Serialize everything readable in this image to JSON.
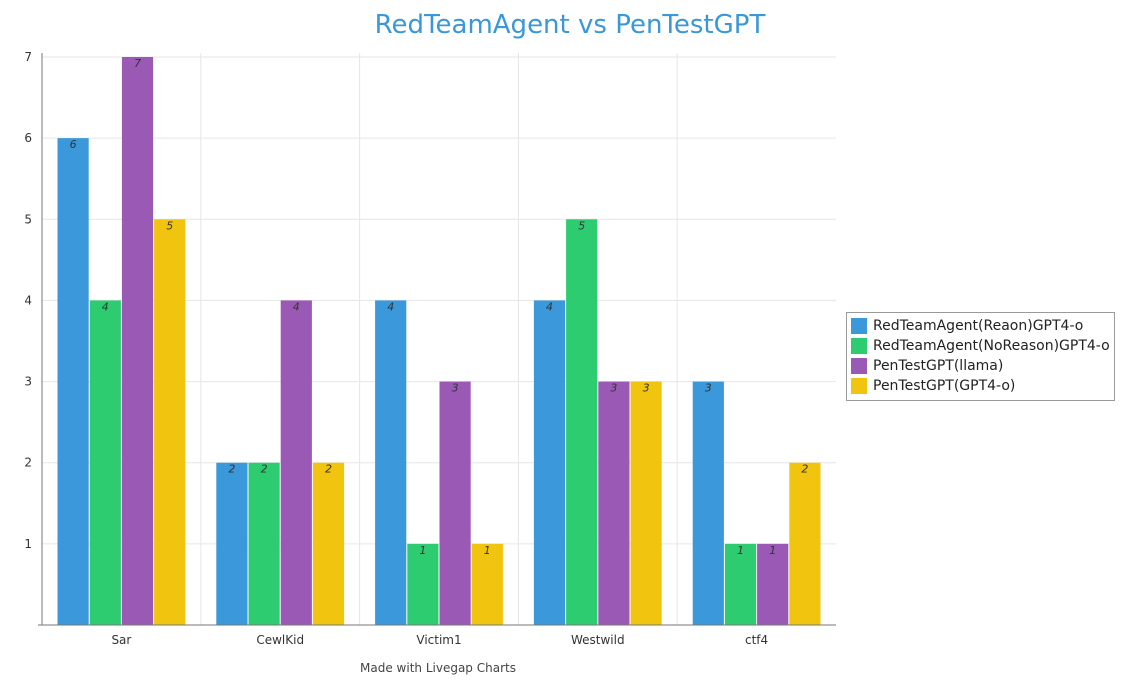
{
  "chart_data": {
    "type": "bar",
    "title": "RedTeamAgent vs PenTestGPT",
    "xlabel": "",
    "ylabel": "",
    "ylim": [
      0,
      7
    ],
    "yticks": [
      1,
      2,
      3,
      4,
      5,
      6,
      7
    ],
    "categories": [
      "Sar",
      "CewlKid",
      "Victim1",
      "Westwild",
      "ctf4"
    ],
    "series": [
      {
        "name": "RedTeamAgent(Reaon)GPT4-o",
        "color": "#3a98db",
        "values": [
          6,
          2,
          4,
          4,
          3
        ]
      },
      {
        "name": "RedTeamAgent(NoReason)GPT4-o",
        "color": "#2ecc71",
        "values": [
          4,
          2,
          1,
          5,
          1
        ]
      },
      {
        "name": "PenTestGPT(llama)",
        "color": "#9b59b6",
        "values": [
          7,
          4,
          3,
          3,
          1
        ]
      },
      {
        "name": "PenTestGPT(GPT4-o)",
        "color": "#f1c40f",
        "values": [
          5,
          2,
          1,
          3,
          2
        ]
      }
    ],
    "grid": true,
    "data_labels": true,
    "legend_position": "right"
  },
  "footer_text": "Made with Livegap Charts"
}
